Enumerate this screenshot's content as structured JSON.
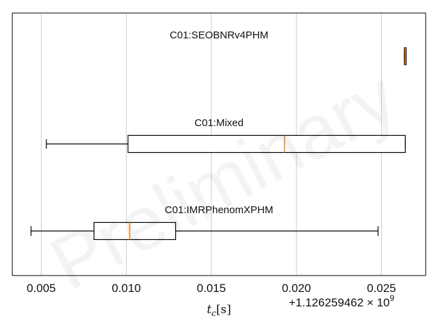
{
  "watermark": "Preliminary",
  "chart_data": {
    "type": "boxplot",
    "orientation": "horizontal",
    "xlabel_main": "t",
    "xlabel_sub": "c",
    "xlabel_unit": "[s]",
    "x_offset_label": "+1.126259462 × 10",
    "x_offset_exponent": "9",
    "xlim": [
      0.0033,
      0.0276
    ],
    "grid": "vertical",
    "ticks": [
      {
        "value": 0.005,
        "label": "0.005"
      },
      {
        "value": 0.01,
        "label": "0.010"
      },
      {
        "value": 0.015,
        "label": "0.015"
      },
      {
        "value": 0.02,
        "label": "0.020"
      },
      {
        "value": 0.025,
        "label": "0.025"
      }
    ],
    "series": [
      {
        "name": "C01:SEOBNRv4PHM",
        "whisker_low": 0.02635,
        "q1": 0.02635,
        "median": 0.0264,
        "q3": 0.02645,
        "whisker_high": 0.02645
      },
      {
        "name": "C01:Mixed",
        "whisker_low": 0.0053,
        "q1": 0.0101,
        "median": 0.0193,
        "q3": 0.0264,
        "whisker_high": 0.0264
      },
      {
        "name": "C01:IMRPhenomXPHM",
        "whisker_low": 0.0044,
        "q1": 0.0081,
        "median": 0.0102,
        "q3": 0.0129,
        "whisker_high": 0.0248
      }
    ],
    "colors": {
      "box": "#000000",
      "median": "#ff7f0e",
      "grid": "#cccccc",
      "frame": "#000000"
    }
  }
}
